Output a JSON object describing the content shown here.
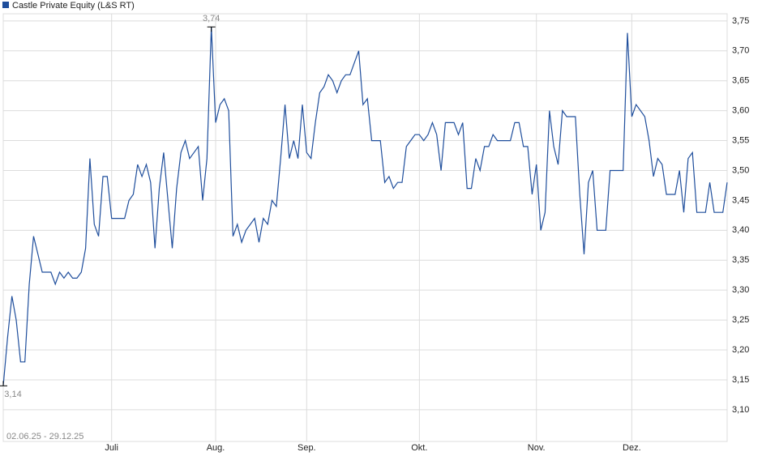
{
  "chart_data": {
    "type": "line",
    "date_range": "02.06.25 - 29.12.25",
    "categories": [
      null,
      null,
      null,
      null,
      null,
      null,
      null,
      null,
      null,
      null,
      null,
      null,
      null,
      null,
      null,
      null,
      null,
      null,
      null,
      null,
      null,
      null,
      null,
      null,
      null,
      "Juli",
      null,
      null,
      null,
      null,
      null,
      null,
      null,
      null,
      null,
      null,
      null,
      null,
      null,
      null,
      null,
      null,
      null,
      null,
      null,
      null,
      null,
      null,
      null,
      "Aug.",
      null,
      null,
      null,
      null,
      null,
      null,
      null,
      null,
      null,
      null,
      null,
      null,
      null,
      null,
      null,
      null,
      null,
      null,
      null,
      null,
      "Sep.",
      null,
      null,
      null,
      null,
      null,
      null,
      null,
      null,
      null,
      null,
      null,
      null,
      null,
      null,
      null,
      null,
      null,
      null,
      null,
      null,
      null,
      null,
      null,
      null,
      null,
      "Okt.",
      null,
      null,
      null,
      null,
      null,
      null,
      null,
      null,
      null,
      null,
      null,
      null,
      null,
      null,
      null,
      null,
      null,
      null,
      null,
      null,
      null,
      null,
      null,
      null,
      null,
      null,
      "Nov.",
      null,
      null,
      null,
      null,
      null,
      null,
      null,
      null,
      null,
      null,
      null,
      null,
      null,
      null,
      null,
      null,
      null,
      null,
      null,
      null,
      null,
      "Dez.",
      null,
      null,
      null,
      null,
      null,
      null,
      null,
      null,
      null,
      null,
      null,
      null,
      null,
      null,
      null,
      null,
      null,
      null,
      null,
      null,
      null,
      null
    ],
    "series": [
      {
        "name": "Castle Private Equity (L&S RT)",
        "color": "#1f4e9c",
        "values": [
          3.14,
          3.22,
          3.29,
          3.25,
          3.18,
          3.18,
          3.31,
          3.39,
          3.36,
          3.33,
          3.33,
          3.33,
          3.31,
          3.33,
          3.32,
          3.33,
          3.32,
          3.32,
          3.33,
          3.37,
          3.52,
          3.41,
          3.39,
          3.49,
          3.49,
          3.42,
          3.42,
          3.42,
          3.42,
          3.45,
          3.46,
          3.51,
          3.49,
          3.51,
          3.48,
          3.37,
          3.47,
          3.53,
          3.45,
          3.37,
          3.47,
          3.53,
          3.55,
          3.52,
          3.53,
          3.54,
          3.45,
          3.52,
          3.74,
          3.58,
          3.61,
          3.62,
          3.6,
          3.39,
          3.41,
          3.38,
          3.4,
          3.41,
          3.42,
          3.38,
          3.42,
          3.41,
          3.45,
          3.44,
          3.52,
          3.61,
          3.52,
          3.55,
          3.52,
          3.61,
          3.53,
          3.52,
          3.58,
          3.63,
          3.64,
          3.66,
          3.65,
          3.63,
          3.65,
          3.66,
          3.66,
          3.68,
          3.7,
          3.61,
          3.62,
          3.55,
          3.55,
          3.55,
          3.48,
          3.49,
          3.47,
          3.48,
          3.48,
          3.54,
          3.55,
          3.56,
          3.56,
          3.55,
          3.56,
          3.58,
          3.56,
          3.5,
          3.58,
          3.58,
          3.58,
          3.56,
          3.58,
          3.47,
          3.47,
          3.52,
          3.5,
          3.54,
          3.54,
          3.56,
          3.55,
          3.55,
          3.55,
          3.55,
          3.58,
          3.58,
          3.54,
          3.54,
          3.46,
          3.51,
          3.4,
          3.43,
          3.6,
          3.54,
          3.51,
          3.6,
          3.59,
          3.59,
          3.59,
          3.46,
          3.36,
          3.48,
          3.5,
          3.4,
          3.4,
          3.4,
          3.5,
          3.5,
          3.5,
          3.5,
          3.73,
          3.59,
          3.61,
          3.6,
          3.59,
          3.55,
          3.49,
          3.52,
          3.51,
          3.46,
          3.46,
          3.46,
          3.5,
          3.43,
          3.52,
          3.53,
          3.43,
          3.43,
          3.43,
          3.48,
          3.43,
          3.43,
          3.43,
          3.48
        ]
      }
    ],
    "annotations": [
      {
        "value": 3.74,
        "label": "3,74"
      },
      {
        "value": 3.14,
        "label": "3,14"
      }
    ],
    "ylim": [
      3.047,
      3.762
    ],
    "yticks": [
      {
        "value": 3.1,
        "label": "3,10"
      },
      {
        "value": 3.15,
        "label": "3,15"
      },
      {
        "value": 3.2,
        "label": "3,20"
      },
      {
        "value": 3.25,
        "label": "3,25"
      },
      {
        "value": 3.3,
        "label": "3,30"
      },
      {
        "value": 3.35,
        "label": "3,35"
      },
      {
        "value": 3.4,
        "label": "3,40"
      },
      {
        "value": 3.45,
        "label": "3,45"
      },
      {
        "value": 3.5,
        "label": "3,50"
      },
      {
        "value": 3.55,
        "label": "3,55"
      },
      {
        "value": 3.6,
        "label": "3,60"
      },
      {
        "value": 3.65,
        "label": "3,65"
      },
      {
        "value": 3.7,
        "label": "3,70"
      },
      {
        "value": 3.75,
        "label": "3,75"
      }
    ],
    "grid": true
  }
}
